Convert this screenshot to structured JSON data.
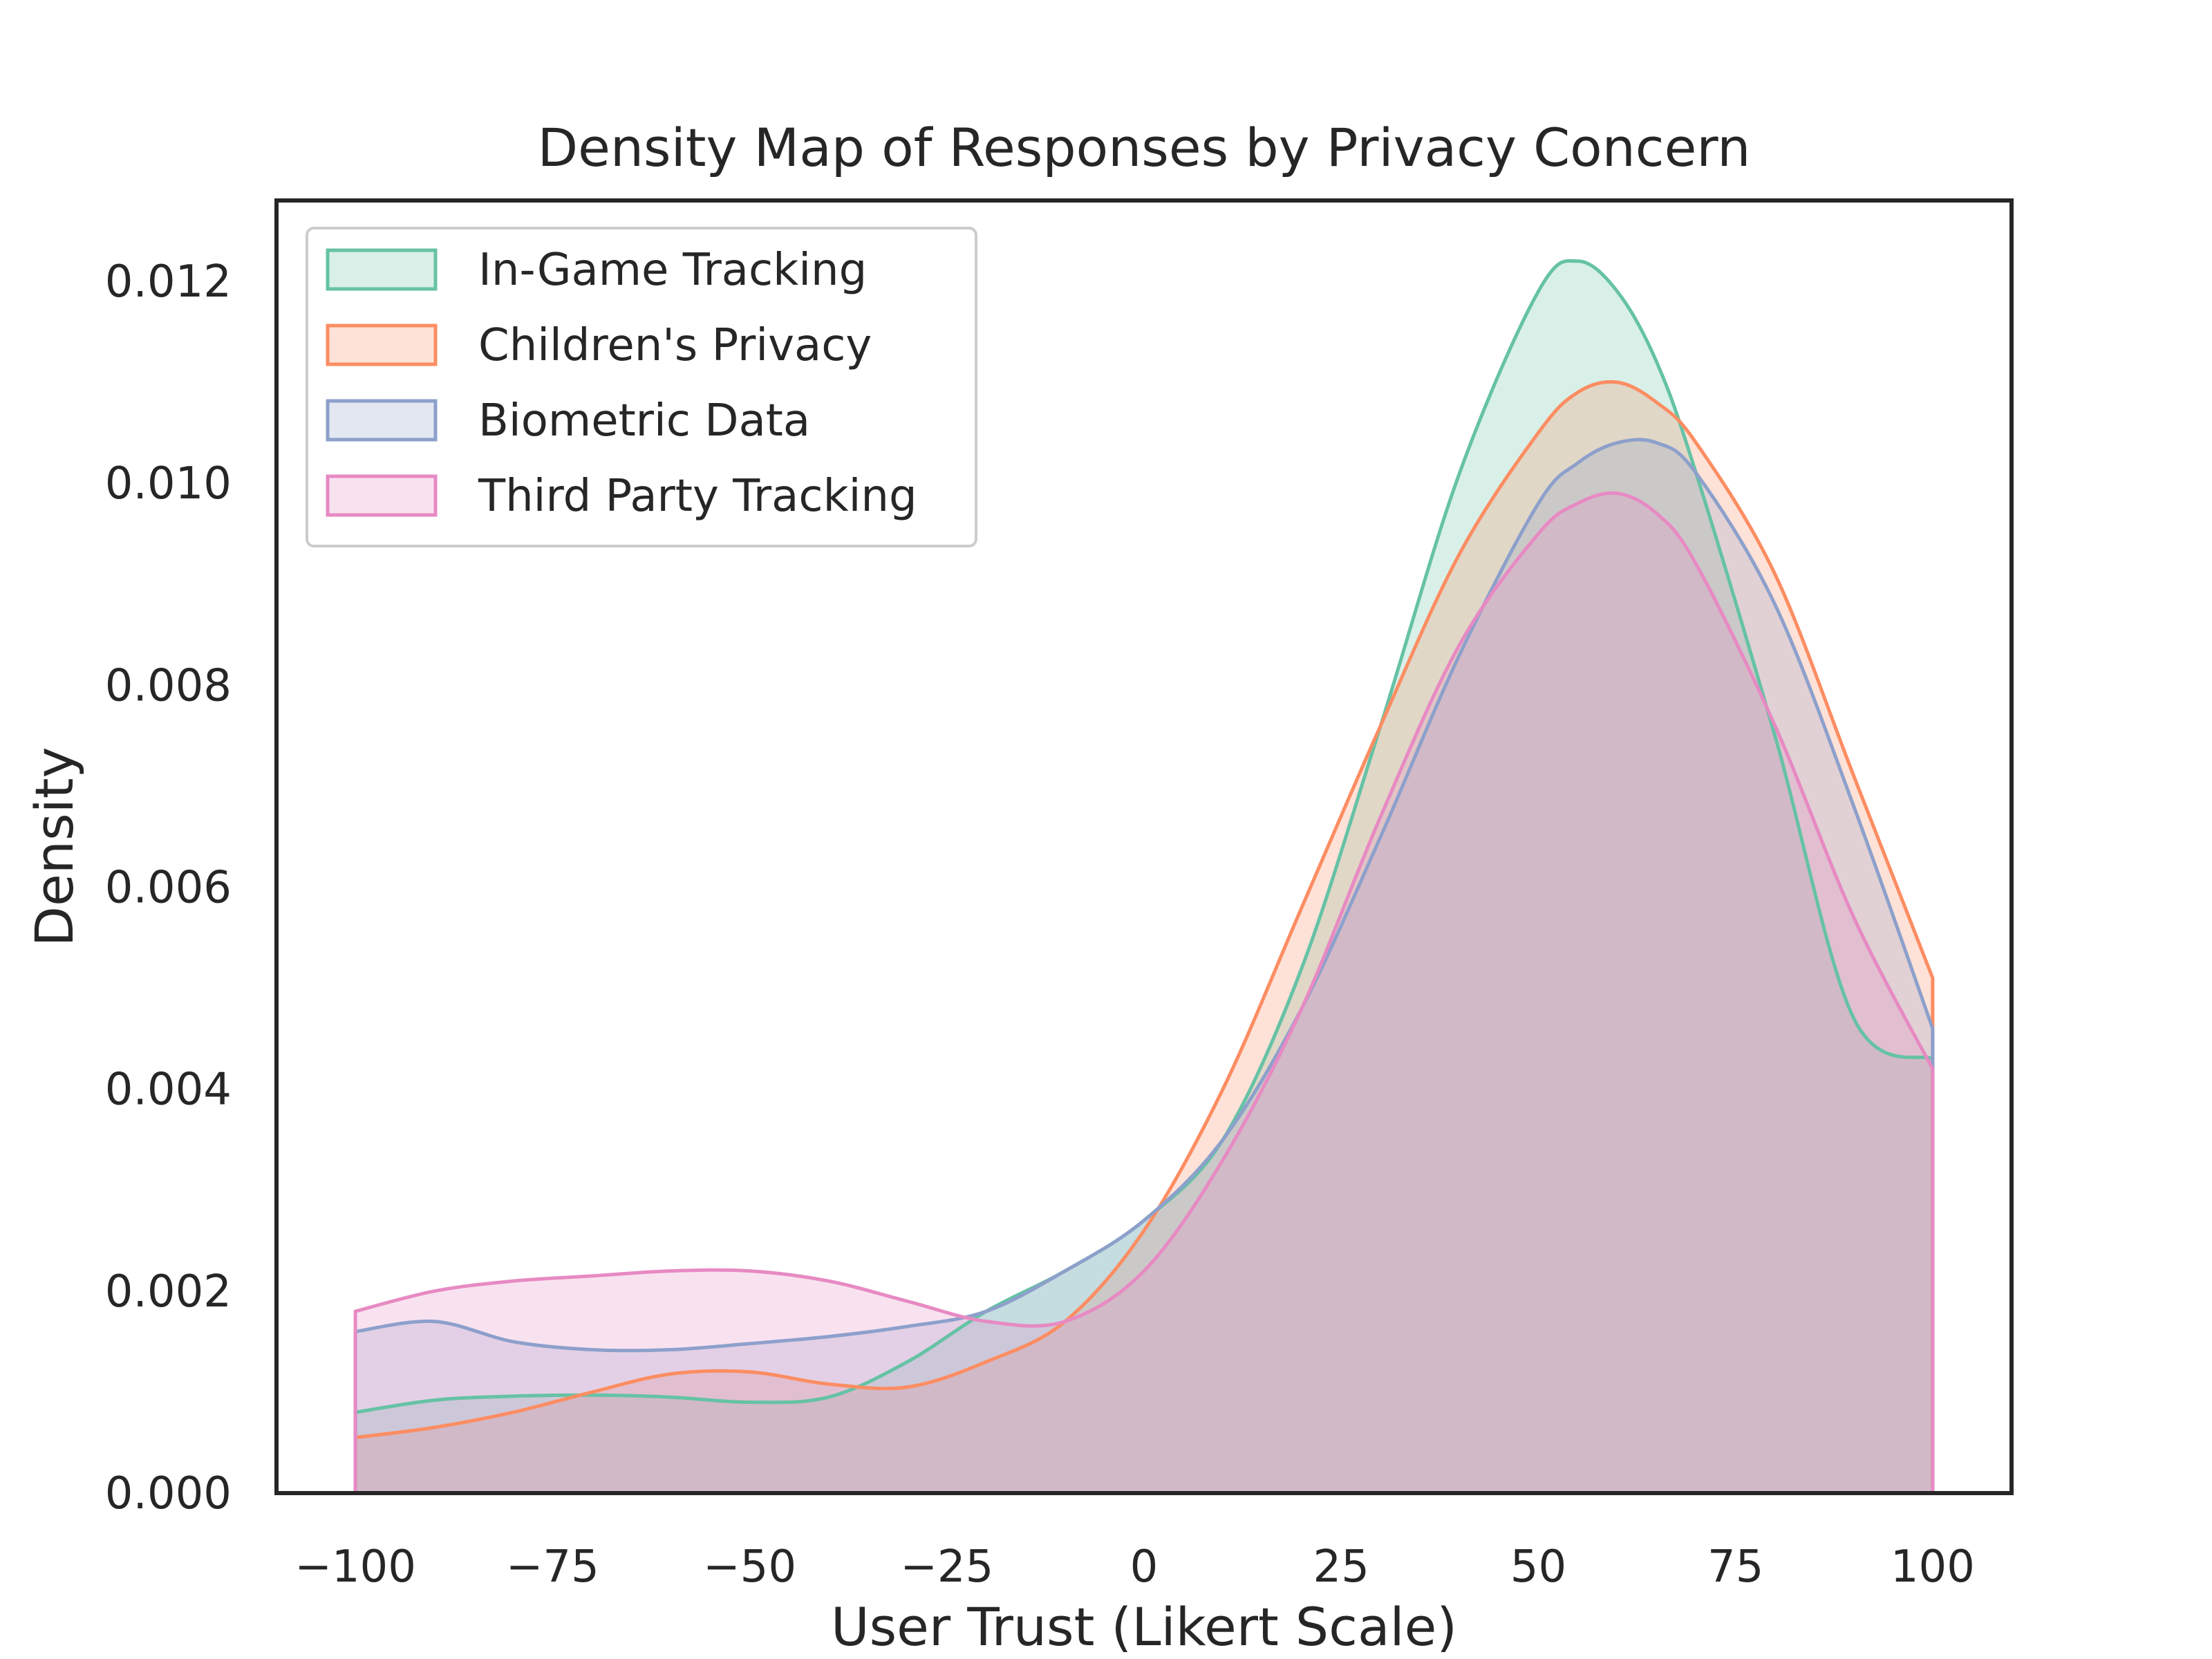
{
  "chart_data": {
    "type": "area",
    "title": "Density Map of Responses by Privacy Concern",
    "xlabel": "User Trust (Likert Scale)",
    "ylabel": "Density",
    "xlim": [
      -110,
      110
    ],
    "ylim": [
      0,
      0.0128
    ],
    "xticks": [
      -100,
      -75,
      -50,
      -25,
      0,
      25,
      50,
      75,
      100
    ],
    "xtick_labels": [
      "−100",
      "−75",
      "−50",
      "−25",
      "0",
      "25",
      "50",
      "75",
      "100"
    ],
    "yticks": [
      0,
      0.002,
      0.004,
      0.006,
      0.008,
      0.01,
      0.012
    ],
    "ytick_labels": [
      "0.000",
      "0.002",
      "0.004",
      "0.006",
      "0.008",
      "0.010",
      "0.012"
    ],
    "grid": false,
    "legend_position": "top-left",
    "x": [
      -100,
      -90,
      -80,
      -70,
      -60,
      -50,
      -40,
      -30,
      -20,
      -10,
      0,
      10,
      20,
      30,
      40,
      50,
      55,
      60,
      65,
      70,
      80,
      90,
      100
    ],
    "series": [
      {
        "name": "In-Game Tracking",
        "color": "#66c2a5",
        "values": [
          0.0008,
          0.00092,
          0.00096,
          0.00097,
          0.00095,
          0.0009,
          0.00095,
          0.0013,
          0.0018,
          0.0022,
          0.0027,
          0.0035,
          0.0052,
          0.0076,
          0.0101,
          0.0119,
          0.0122,
          0.0119,
          0.0112,
          0.0101,
          0.0075,
          0.0047,
          0.0043
        ]
      },
      {
        "name": "Children's Privacy",
        "color": "#fc8d62",
        "values": [
          0.00055,
          0.00065,
          0.0008,
          0.001,
          0.00118,
          0.0012,
          0.00108,
          0.00105,
          0.0013,
          0.0017,
          0.0026,
          0.004,
          0.0058,
          0.0076,
          0.0093,
          0.0105,
          0.0109,
          0.011,
          0.0108,
          0.0104,
          0.0091,
          0.0071,
          0.0051
        ]
      },
      {
        "name": "Biometric Data",
        "color": "#8da0cb",
        "values": [
          0.0016,
          0.0017,
          0.0015,
          0.00142,
          0.00142,
          0.00148,
          0.00155,
          0.00165,
          0.0018,
          0.0022,
          0.0027,
          0.0035,
          0.0048,
          0.0065,
          0.0083,
          0.0098,
          0.0102,
          0.0104,
          0.0104,
          0.0101,
          0.0088,
          0.0068,
          0.0046
        ]
      },
      {
        "name": "Third Party Tracking",
        "color": "#e78ac3",
        "values": [
          0.0018,
          0.002,
          0.0021,
          0.00215,
          0.0022,
          0.0022,
          0.0021,
          0.0019,
          0.0017,
          0.0017,
          0.0022,
          0.0033,
          0.0048,
          0.0067,
          0.0084,
          0.0095,
          0.0098,
          0.0099,
          0.0097,
          0.0092,
          0.0076,
          0.0057,
          0.0042
        ]
      }
    ]
  }
}
